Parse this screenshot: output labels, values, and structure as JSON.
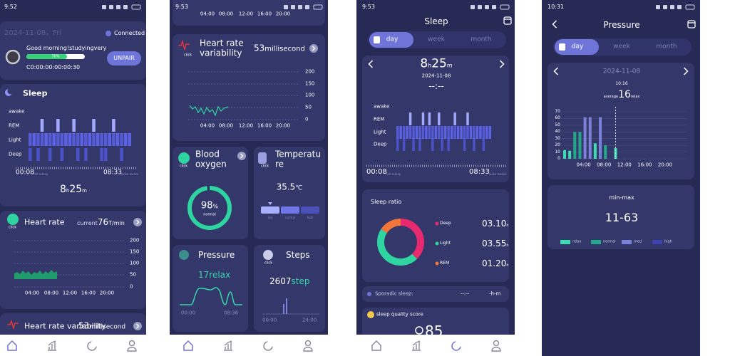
{
  "screens": [
    {
      "status_time": "9:52",
      "date": "2024-11-08，Fri",
      "connection": "Connected",
      "greeting": "Good morning!studyingvery",
      "battery": "70%",
      "device_id": "C0:00:00:00:00:30",
      "unpair_button": "UNPAIR",
      "sleep": {
        "title": "Sleep",
        "stages": [
          "awake",
          "REM",
          "Light",
          "Deep"
        ],
        "start_time": "00:08",
        "start_label": "fall asleep",
        "end_time": "08:33",
        "end_label": "woke awake",
        "hours": 8,
        "hours_unit": "h",
        "minutes": 25,
        "minutes_unit": "m"
      },
      "heart_rate": {
        "title": "Heart rate",
        "icon_label": "click",
        "current_label": "current",
        "current_value": 76,
        "unit": "T/min",
        "yticks": [
          200,
          150,
          100,
          50,
          0
        ],
        "xticks": [
          "04:00",
          "08:00",
          "12:00",
          "16:00",
          "20:00"
        ]
      },
      "hrv": {
        "title": "Heart rate variability",
        "value": 53,
        "unit": "millisecond"
      }
    },
    {
      "status_time": "9:53",
      "top_xticks": [
        "04:00",
        "08:00",
        "12:00",
        "16:00",
        "20:00"
      ],
      "hrv": {
        "title": "Heart rate variability",
        "icon_label": "click",
        "value": 53,
        "unit": "millisecond",
        "yticks": [
          200,
          150,
          100,
          50,
          0
        ],
        "xticks": [
          "04:00",
          "08:00",
          "12:00",
          "16:00",
          "20:00"
        ]
      },
      "blood_oxygen": {
        "title": "Blood oxygen",
        "icon_label": "click",
        "value": 98,
        "unit": "%",
        "status": "normal"
      },
      "temperature": {
        "title": "Temperature",
        "icon_label": "click",
        "value": 35.5,
        "unit": "℃",
        "levels": [
          "low",
          "normal",
          "high"
        ]
      },
      "pressure": {
        "title": "Pressure",
        "value": 17,
        "status": "relax",
        "start_time": "00:00",
        "end_time": "08:36"
      },
      "steps": {
        "title": "Steps",
        "icon_label": "click",
        "value": 2607,
        "unit": "step",
        "start_time": "00:00",
        "end_time": "24:00"
      }
    },
    {
      "status_time": "9:53",
      "title": "Sleep",
      "tabs": [
        "day",
        "week",
        "month"
      ],
      "summary": {
        "hours": 8,
        "hours_unit": "h",
        "minutes": 25,
        "minutes_unit": "m",
        "date": "2024-11-08",
        "time_range": "--:--"
      },
      "stages": [
        "awake",
        "REM",
        "Light",
        "Deep"
      ],
      "start_time": "00:08",
      "start_label": "fall asleep",
      "end_time": "08:33",
      "end_label": "woke awake",
      "ratio": {
        "title": "Sleep ratio",
        "items": [
          {
            "name": "Deep",
            "value": "03.10",
            "unit": "h",
            "color": "#e8296e"
          },
          {
            "name": "Light",
            "value": "03.55",
            "unit": "h",
            "color": "#2ed5a0"
          },
          {
            "name": "REM",
            "value": "01.20",
            "unit": "h",
            "color": "#f2753a"
          }
        ]
      },
      "sporadic": {
        "label": "Sporadic sleep:",
        "time": "--:--",
        "duration": "-h-m"
      },
      "quality": {
        "title": "sleep quality score",
        "value": 85
      }
    },
    {
      "status_time": "10:31",
      "title": "Pressure",
      "tabs": [
        "day",
        "week",
        "month"
      ],
      "date": "2024-11-08",
      "selected_time": "10:16",
      "average_label": "average",
      "average_value": 16,
      "average_status": "relax",
      "chart": {
        "hours": [
          0,
          1,
          2,
          3,
          4,
          5,
          6,
          7,
          8,
          10
        ],
        "values": [
          13,
          12,
          40,
          40,
          62,
          62,
          23,
          62,
          20,
          16
        ],
        "colors": [
          "#3ddbb0",
          "#3ddbb0",
          "#22a889",
          "#22a889",
          "#7b80d8",
          "#7b80d8",
          "#3ddbb0",
          "#7b80d8",
          "#22a889",
          "#3ddbb0"
        ],
        "ylim": [
          0,
          70
        ],
        "yticks": [
          0,
          10,
          20,
          30,
          40,
          50,
          60,
          70
        ],
        "xticks": [
          {
            "value": 4,
            "label": "04:00"
          },
          {
            "value": 8,
            "label": "08:00"
          },
          {
            "value": 12,
            "label": "12:00"
          },
          {
            "value": 16,
            "label": "16:00"
          },
          {
            "value": 20,
            "label": "20:00"
          }
        ]
      },
      "range_title": "min-max",
      "range_value": "11-63",
      "legend": [
        {
          "name": "relax",
          "color": "#3ddbb0"
        },
        {
          "name": "normal",
          "color": "#22a889"
        },
        {
          "name": "med",
          "color": "#7b80d8"
        },
        {
          "name": "high",
          "color": "#3c42b0"
        }
      ]
    }
  ]
}
